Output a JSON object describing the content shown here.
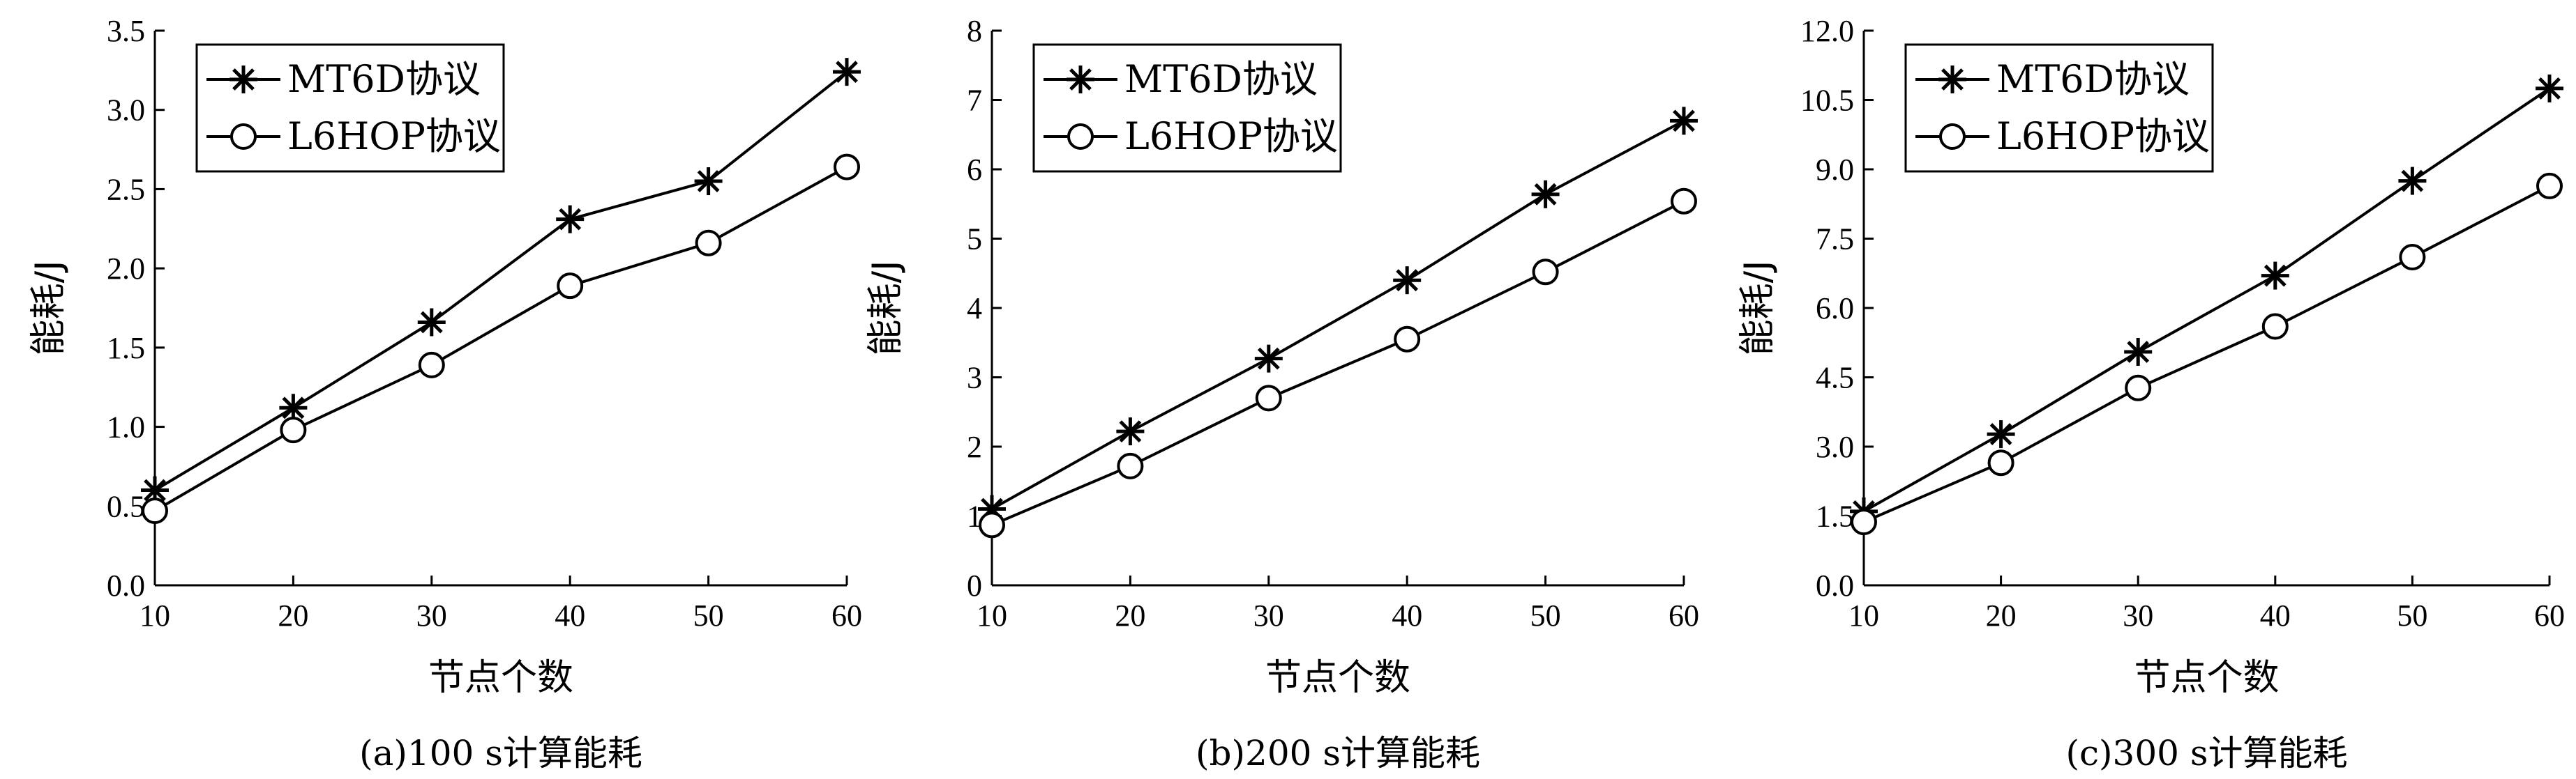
{
  "chart_data": [
    {
      "type": "line",
      "caption": "(a)100 s计算能耗",
      "xlabel": "节点个数",
      "ylabel": "能耗/J",
      "x": [
        10,
        20,
        30,
        40,
        50,
        60
      ],
      "xlim": [
        10,
        60
      ],
      "ylim": [
        0,
        3.5
      ],
      "yticks": [
        "0.0",
        "0.5",
        "1.0",
        "1.5",
        "2.0",
        "2.5",
        "3.0",
        "3.5"
      ],
      "xticks": [
        "10",
        "20",
        "30",
        "40",
        "50",
        "60"
      ],
      "legend_position": "top-left",
      "grid": false,
      "series": [
        {
          "name": "MT6D协议",
          "marker": "star",
          "values": [
            0.6,
            1.12,
            1.66,
            2.31,
            2.55,
            3.24
          ]
        },
        {
          "name": "L6HOP协议",
          "marker": "circle",
          "values": [
            0.47,
            0.98,
            1.39,
            1.89,
            2.16,
            2.64
          ]
        }
      ]
    },
    {
      "type": "line",
      "caption": "(b)200 s计算能耗",
      "xlabel": "节点个数",
      "ylabel": "能耗/J",
      "x": [
        10,
        20,
        30,
        40,
        50,
        60
      ],
      "xlim": [
        10,
        60
      ],
      "ylim": [
        0,
        8
      ],
      "yticks": [
        "0",
        "1",
        "2",
        "3",
        "4",
        "5",
        "6",
        "7",
        "8"
      ],
      "xticks": [
        "10",
        "20",
        "30",
        "40",
        "50",
        "60"
      ],
      "legend_position": "top-left",
      "grid": false,
      "series": [
        {
          "name": "MT6D协议",
          "marker": "star",
          "values": [
            1.1,
            2.22,
            3.27,
            4.4,
            5.64,
            6.7
          ]
        },
        {
          "name": "L6HOP协议",
          "marker": "circle",
          "values": [
            0.87,
            1.72,
            2.7,
            3.55,
            4.52,
            5.54
          ]
        }
      ]
    },
    {
      "type": "line",
      "caption": "(c)300 s计算能耗",
      "xlabel": "节点个数",
      "ylabel": "能耗/J",
      "x": [
        10,
        20,
        30,
        40,
        50,
        60
      ],
      "xlim": [
        10,
        60
      ],
      "ylim": [
        0,
        12
      ],
      "yticks": [
        "0.0",
        "1.5",
        "3.0",
        "4.5",
        "6.0",
        "7.5",
        "9.0",
        "10.5",
        "12.0"
      ],
      "xticks": [
        "10",
        "20",
        "30",
        "40",
        "50",
        "60"
      ],
      "legend_position": "top-left",
      "grid": false,
      "series": [
        {
          "name": "MT6D协议",
          "marker": "star",
          "values": [
            1.6,
            3.27,
            5.05,
            6.7,
            8.75,
            10.75
          ]
        },
        {
          "name": "L6HOP协议",
          "marker": "circle",
          "values": [
            1.37,
            2.65,
            4.27,
            5.6,
            7.1,
            8.64
          ]
        }
      ]
    }
  ]
}
